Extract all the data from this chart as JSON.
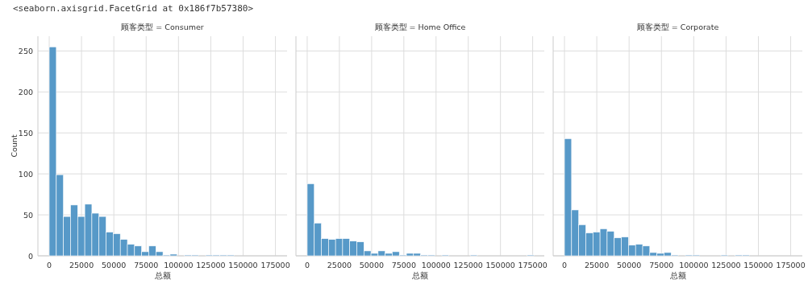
{
  "chart_data": [
    {
      "type": "histogram",
      "title": "顾客类型 = Consumer",
      "xlabel": "总额",
      "ylabel": "Count",
      "color": "#5799c8",
      "grid": true,
      "xlim": [
        -8750,
        184000
      ],
      "ylim": [
        0,
        268
      ],
      "xticks": [
        0,
        25000,
        50000,
        75000,
        100000,
        125000,
        150000,
        175000
      ],
      "yticks": [
        0,
        50,
        100,
        150,
        200,
        250
      ],
      "annotations": [
        "<seaborn.axisgrid.FacetGrid at 0x186f7b57380>"
      ],
      "bins": [
        0,
        5500,
        11000,
        16500,
        22000,
        27500,
        33000,
        38500,
        44000,
        49500,
        55000,
        60500,
        66000,
        71500,
        77000,
        82500,
        88000,
        93500,
        99000,
        104500,
        110000,
        115500,
        121000,
        126500,
        132000,
        137500,
        143000
      ],
      "values": [
        255,
        99,
        48,
        62,
        48,
        63,
        52,
        48,
        29,
        27,
        20,
        14,
        12,
        5,
        12,
        5,
        1,
        2,
        0,
        1,
        1,
        0,
        1,
        1,
        1,
        1
      ]
    },
    {
      "type": "histogram",
      "title": "顾客类型 = Home Office",
      "xlabel": "总额",
      "color": "#5799c8",
      "grid": true,
      "tick_labels": "x",
      "xlim": [
        -8750,
        184000
      ],
      "ylim": [
        0,
        268
      ],
      "xticks": [
        0,
        25000,
        50000,
        75000,
        100000,
        125000,
        150000,
        175000
      ],
      "yticks": [
        0,
        50,
        100,
        150,
        200,
        250
      ],
      "bins": [
        0,
        5500,
        11000,
        16500,
        22000,
        27500,
        33000,
        38500,
        44000,
        49500,
        55000,
        60500,
        66000,
        71500,
        77000,
        82500,
        88000,
        93500,
        99000,
        104500,
        110000,
        115500,
        121000,
        126500,
        132000,
        137500,
        143000,
        148500,
        154000,
        159500,
        165000,
        170500,
        176000
      ],
      "values": [
        88,
        40,
        21,
        20,
        21,
        21,
        18,
        17,
        6,
        3,
        6,
        3,
        5,
        1,
        3,
        3,
        1,
        1,
        0,
        1,
        0,
        0,
        0,
        1,
        0,
        0,
        0,
        0,
        0,
        0,
        0,
        1
      ]
    },
    {
      "type": "histogram",
      "title": "顾客类型 = Corporate",
      "xlabel": "总额",
      "color": "#5799c8",
      "grid": true,
      "tick_labels": "x",
      "xlim": [
        -8750,
        184000
      ],
      "ylim": [
        0,
        268
      ],
      "xticks": [
        0,
        25000,
        50000,
        75000,
        100000,
        125000,
        150000,
        175000
      ],
      "yticks": [
        0,
        50,
        100,
        150,
        200,
        250
      ],
      "bins": [
        0,
        5500,
        11000,
        16500,
        22000,
        27500,
        33000,
        38500,
        44000,
        49500,
        55000,
        60500,
        66000,
        71500,
        77000,
        82500,
        88000,
        93500,
        99000,
        104500,
        110000,
        115500,
        121000,
        126500,
        132000,
        137500,
        143000
      ],
      "values": [
        143,
        56,
        38,
        28,
        29,
        33,
        30,
        22,
        23,
        13,
        14,
        12,
        4,
        3,
        4,
        1,
        0,
        1,
        1,
        0,
        0,
        0,
        1,
        0,
        1,
        1
      ]
    }
  ]
}
